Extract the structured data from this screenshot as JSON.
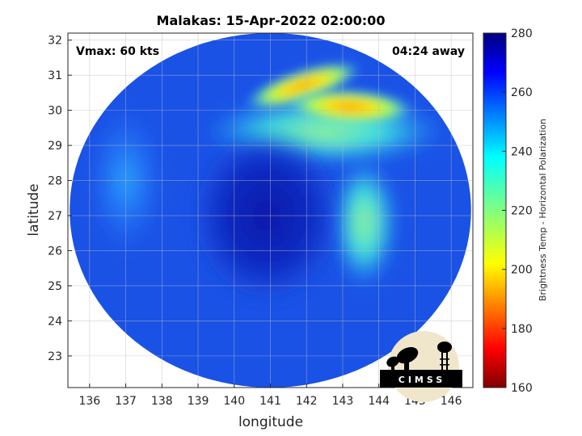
{
  "chart_data": {
    "type": "heatmap",
    "title": "Malakas: 15-Apr-2022 02:00:00",
    "xlabel": "longitude",
    "ylabel": "latitude",
    "xlim": [
      135.4,
      146.6
    ],
    "ylim": [
      22.1,
      32.2
    ],
    "xticks": [
      136,
      137,
      138,
      139,
      140,
      141,
      142,
      143,
      144,
      145,
      146
    ],
    "yticks": [
      23,
      24,
      25,
      26,
      27,
      28,
      29,
      30,
      31,
      32
    ],
    "grid": true,
    "annotations": {
      "left": "Vmax: 60 kts",
      "right": "04:24 away"
    },
    "colorbar": {
      "label": "Brightness Temp - Horizontal Polarization",
      "range": [
        160,
        280
      ],
      "ticks": [
        160,
        180,
        200,
        220,
        240,
        260,
        280
      ],
      "colormap": "jet",
      "position": "right"
    },
    "swath": {
      "center_lon": 141.0,
      "center_lat": 27.15,
      "radius_lon": 5.55,
      "radius_lat": 5.05,
      "background_value": 262,
      "features": [
        {
          "name": "cold-core",
          "lon": 140.9,
          "lat": 27.0,
          "value": 275
        },
        {
          "name": "northern-warm-band-west",
          "lon": 141.9,
          "lat": 30.7,
          "value": 205
        },
        {
          "name": "northern-warm-band-east",
          "lon": 143.2,
          "lat": 30.1,
          "value": 205
        },
        {
          "name": "eastern-warm-patch",
          "lon": 143.6,
          "lat": 26.8,
          "value": 232
        },
        {
          "name": "northern-arc",
          "lon": 142.5,
          "lat": 29.4,
          "value": 235
        },
        {
          "name": "northwest-edge",
          "lon": 137.0,
          "lat": 28.0,
          "value": 250
        }
      ]
    }
  },
  "logo": {
    "text": "CIMSS"
  }
}
